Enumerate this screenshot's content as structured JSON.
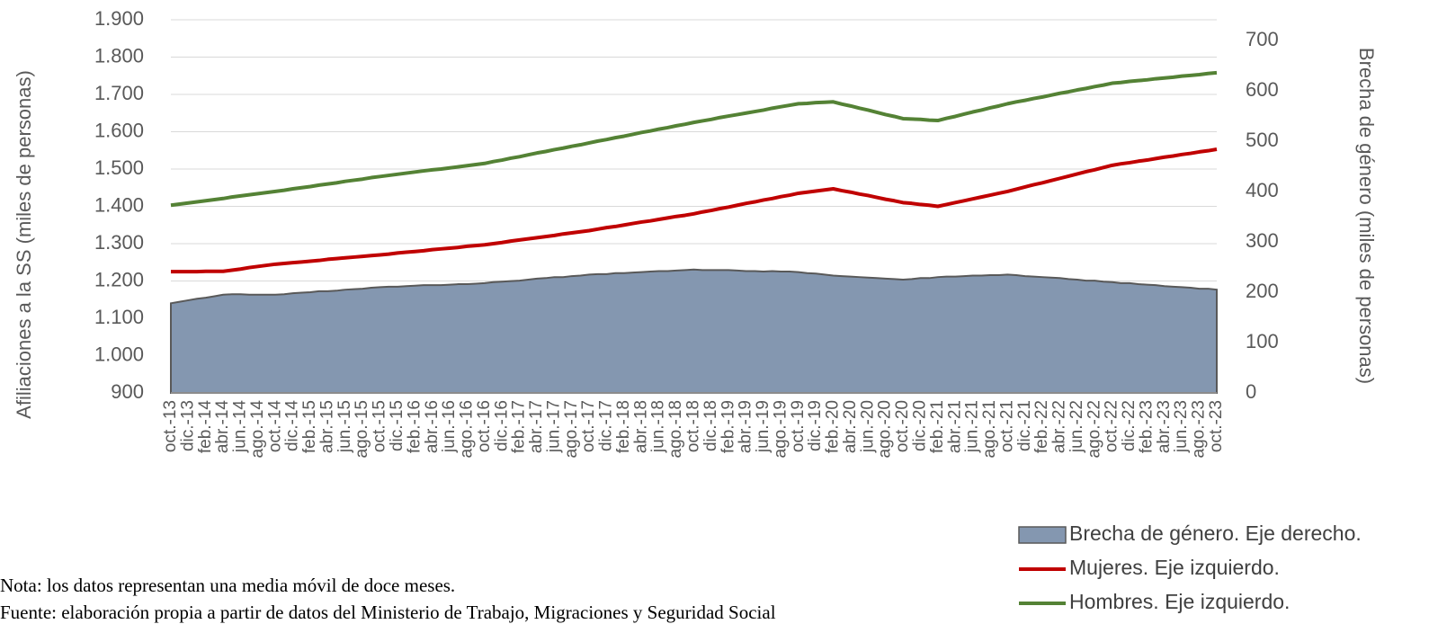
{
  "chart_data": {
    "type": "line",
    "categories": [
      "oct.-13",
      null,
      "dic.-13",
      null,
      "feb.-14",
      null,
      "abr.-14",
      null,
      "jun.-14",
      null,
      "ago.-14",
      null,
      "oct.-14",
      null,
      "dic.-14",
      null,
      "feb.-15",
      null,
      "abr.-15",
      null,
      "jun.-15",
      null,
      "ago.-15",
      null,
      "oct.-15",
      null,
      "dic.-15",
      null,
      "feb.-16",
      null,
      "abr.-16",
      null,
      "jun.-16",
      null,
      "ago.-16",
      null,
      "oct.-16",
      null,
      "dic.-16",
      null,
      "feb.-17",
      null,
      "abr.-17",
      null,
      "jun.-17",
      null,
      "ago.-17",
      null,
      "oct.-17",
      null,
      "dic.-17",
      null,
      "feb.-18",
      null,
      "abr.-18",
      null,
      "jun.-18",
      null,
      "ago.-18",
      null,
      "oct.-18",
      null,
      "dic.-18",
      null,
      "feb.-19",
      null,
      "abr.-19",
      null,
      "jun.-19",
      null,
      "ago.-19",
      null,
      "oct.-19",
      null,
      "dic.-19",
      null,
      "feb.-20",
      null,
      "abr.-20",
      null,
      "jun.-20",
      null,
      "ago.-20",
      null,
      "oct.-20",
      null,
      "dic.-20",
      null,
      "feb.-21",
      null,
      "abr.-21",
      null,
      "jun.-21",
      null,
      "ago.-21",
      null,
      "oct.-21",
      null,
      "dic.-21",
      null,
      "feb.-22",
      null,
      "abr.-22",
      null,
      "jun.-22",
      null,
      "ago.-22",
      null,
      "oct.-22",
      null,
      "dic.-22",
      null,
      "feb.-23",
      null,
      "abr.-23",
      null,
      "jun.-23",
      null,
      "ago.-23",
      null,
      "oct.-23"
    ],
    "series": [
      {
        "name": "Brecha de género. Eje derecho.",
        "type": "area",
        "axis": "y2",
        "color": "#8497b0",
        "values": [
          178,
          181,
          184,
          187,
          189,
          192,
          195,
          196,
          196,
          195,
          195,
          195,
          195,
          196,
          198,
          199,
          200,
          202,
          202,
          203,
          205,
          206,
          207,
          209,
          210,
          211,
          211,
          212,
          213,
          214,
          214,
          214,
          215,
          216,
          216,
          217,
          218,
          220,
          221,
          222,
          223,
          225,
          227,
          228,
          230,
          230,
          232,
          233,
          235,
          236,
          236,
          238,
          238,
          239,
          240,
          241,
          242,
          242,
          243,
          244,
          245,
          244,
          244,
          244,
          244,
          243,
          242,
          242,
          241,
          242,
          241,
          241,
          240,
          238,
          237,
          235,
          233,
          232,
          231,
          230,
          229,
          228,
          227,
          226,
          225,
          226,
          228,
          228,
          230,
          231,
          231,
          232,
          233,
          233,
          234,
          234,
          235,
          234,
          232,
          231,
          230,
          229,
          228,
          226,
          225,
          223,
          223,
          221,
          220,
          218,
          218,
          216,
          215,
          214,
          212,
          211,
          210,
          209,
          207,
          207,
          205
        ]
      },
      {
        "name": "Mujeres. Eje izquierdo.",
        "type": "line",
        "color": "#c00000",
        "values": [
          1225,
          1225,
          1225,
          1225,
          1226,
          1226,
          1226,
          1229,
          1232,
          1236,
          1239,
          1242,
          1245,
          1247,
          1249,
          1251,
          1253,
          1255,
          1258,
          1260,
          1262,
          1264,
          1266,
          1268,
          1270,
          1272,
          1275,
          1277,
          1279,
          1281,
          1284,
          1286,
          1288,
          1290,
          1293,
          1295,
          1297,
          1300,
          1303,
          1307,
          1310,
          1313,
          1316,
          1319,
          1322,
          1326,
          1329,
          1332,
          1335,
          1339,
          1343,
          1346,
          1350,
          1354,
          1358,
          1361,
          1365,
          1369,
          1373,
          1376,
          1380,
          1385,
          1389,
          1394,
          1398,
          1403,
          1408,
          1412,
          1417,
          1421,
          1426,
          1430,
          1435,
          1438,
          1441,
          1444,
          1447,
          1442,
          1438,
          1433,
          1429,
          1424,
          1419,
          1415,
          1410,
          1408,
          1405,
          1403,
          1400,
          1405,
          1410,
          1415,
          1420,
          1425,
          1430,
          1435,
          1440,
          1446,
          1452,
          1458,
          1463,
          1469,
          1475,
          1481,
          1487,
          1493,
          1498,
          1504,
          1510,
          1514,
          1517,
          1521,
          1524,
          1528,
          1532,
          1535,
          1539,
          1542,
          1546,
          1549,
          1553
        ]
      },
      {
        "name": "Hombres. Eje izquierdo.",
        "type": "line",
        "color": "#548235",
        "values": [
          1403,
          1406,
          1409,
          1412,
          1415,
          1418,
          1421,
          1425,
          1428,
          1431,
          1434,
          1437,
          1440,
          1443,
          1447,
          1450,
          1453,
          1457,
          1460,
          1463,
          1467,
          1470,
          1473,
          1477,
          1480,
          1483,
          1486,
          1489,
          1492,
          1495,
          1498,
          1500,
          1503,
          1506,
          1509,
          1512,
          1515,
          1520,
          1524,
          1529,
          1533,
          1538,
          1543,
          1547,
          1552,
          1556,
          1561,
          1565,
          1570,
          1575,
          1579,
          1584,
          1588,
          1593,
          1598,
          1602,
          1607,
          1611,
          1616,
          1620,
          1625,
          1629,
          1633,
          1638,
          1642,
          1646,
          1650,
          1654,
          1658,
          1663,
          1667,
          1671,
          1675,
          1676,
          1678,
          1679,
          1680,
          1674,
          1669,
          1663,
          1658,
          1652,
          1646,
          1641,
          1635,
          1634,
          1633,
          1631,
          1630,
          1636,
          1641,
          1647,
          1653,
          1658,
          1664,
          1669,
          1675,
          1680,
          1684,
          1689,
          1693,
          1698,
          1703,
          1707,
          1712,
          1716,
          1721,
          1725,
          1730,
          1732,
          1735,
          1737,
          1739,
          1742,
          1744,
          1746,
          1749,
          1751,
          1753,
          1756,
          1758
        ]
      }
    ],
    "y_label": "Afiliaciones a la SS (miles de personas)",
    "y2_label": "Brecha de género (miles de personas)",
    "ylim": [
      900,
      1900
    ],
    "yticks": [
      900,
      {
        "value": 1000,
        "label": "1.000"
      },
      {
        "value": 1100,
        "label": "1.100"
      },
      {
        "value": 1200,
        "label": "1.200"
      },
      {
        "value": 1300,
        "label": "1.300"
      },
      {
        "value": 1400,
        "label": "1.400"
      },
      {
        "value": 1500,
        "label": "1.500"
      },
      {
        "value": 1600,
        "label": "1.600"
      },
      {
        "value": 1700,
        "label": "1.700"
      },
      {
        "value": 1800,
        "label": "1.800"
      },
      {
        "value": 1900,
        "label": "1.900"
      }
    ],
    "y2lim": [
      0,
      741
    ],
    "y2ticks": [
      0,
      100,
      200,
      300,
      400,
      500,
      600,
      700
    ],
    "grid": true,
    "legend": "bottom-right",
    "notes": [
      "Nota: los datos representan una media móvil de doce meses.",
      "Fuente: elaboración propia a partir de datos del Ministerio de Trabajo, Migraciones y Seguridad Social"
    ]
  }
}
